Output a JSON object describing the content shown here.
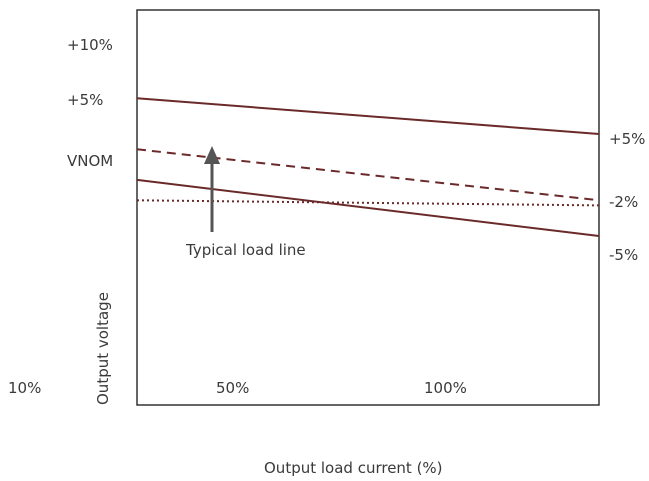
{
  "chart_data": {
    "type": "line",
    "title": "",
    "xlabel": "Output load current (%)",
    "ylabel": "Output voltage",
    "x_tick_labels": [
      "10%",
      "50%",
      "100%"
    ],
    "y_left_labels": [
      "+10%",
      "+5%",
      "VNOM"
    ],
    "y_right_labels": [
      "+5%",
      "-2%",
      "-5%"
    ],
    "annotation": "Typical load line",
    "grid": false,
    "colors": {
      "line": "#6b2a2a",
      "arrow": "#555555",
      "frame": "#333333"
    },
    "series": [
      {
        "style": "solid",
        "x": [
          0,
          100
        ],
        "y": [
          8.5,
          5
        ]
      },
      {
        "style": "dashed",
        "x": [
          0,
          100
        ],
        "y": [
          3.5,
          -1.5
        ]
      },
      {
        "style": "solid",
        "x": [
          0,
          100
        ],
        "y": [
          0.5,
          -5
        ]
      },
      {
        "style": "dotted",
        "x": [
          0,
          100
        ],
        "y": [
          -1.5,
          -2
        ]
      }
    ]
  }
}
